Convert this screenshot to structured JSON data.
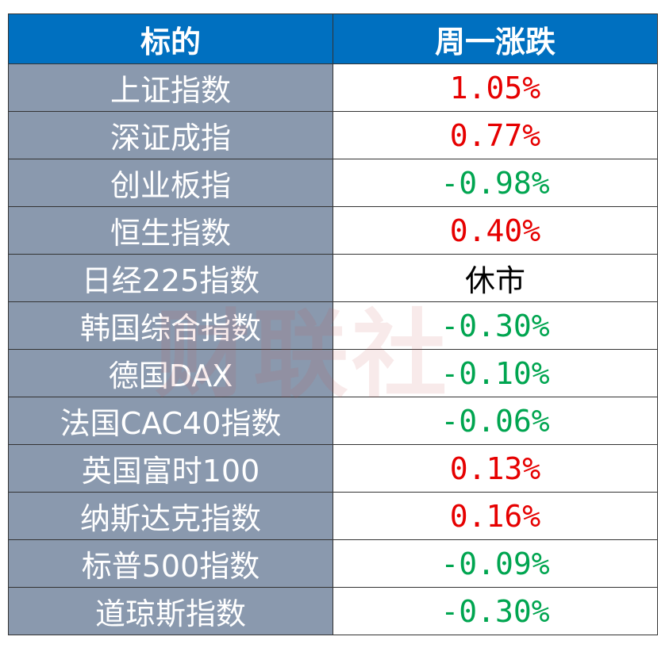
{
  "table": {
    "header": [
      "标的",
      "周一涨跌"
    ],
    "rows": [
      {
        "name": "上证指数",
        "change": "1.05%",
        "color": "#e60000"
      },
      {
        "name": "深证成指",
        "change": "0.77%",
        "color": "#e60000"
      },
      {
        "name": "创业板指",
        "change": "-0.98%",
        "color": "#00a550"
      },
      {
        "name": "恒生指数",
        "change": "0.40%",
        "color": "#e60000"
      },
      {
        "name": "日经225指数",
        "change": "休市",
        "color": "#000000"
      },
      {
        "name": "韩国综合指数",
        "change": "-0.30%",
        "color": "#00a550"
      },
      {
        "name": "德国DAX",
        "change": "-0.10%",
        "color": "#00a550"
      },
      {
        "name": "法国CAC40指数",
        "change": "-0.06%",
        "color": "#00a550"
      },
      {
        "name": "英国富时100",
        "change": "0.13%",
        "color": "#e60000"
      },
      {
        "name": "纳斯达克指数",
        "change": "0.16%",
        "color": "#e60000"
      },
      {
        "name": "标普500指数",
        "change": "-0.09%",
        "color": "#00a550"
      },
      {
        "name": "道琼斯指数",
        "change": "-0.30%",
        "color": "#00a550"
      }
    ]
  },
  "watermark": "财联社"
}
